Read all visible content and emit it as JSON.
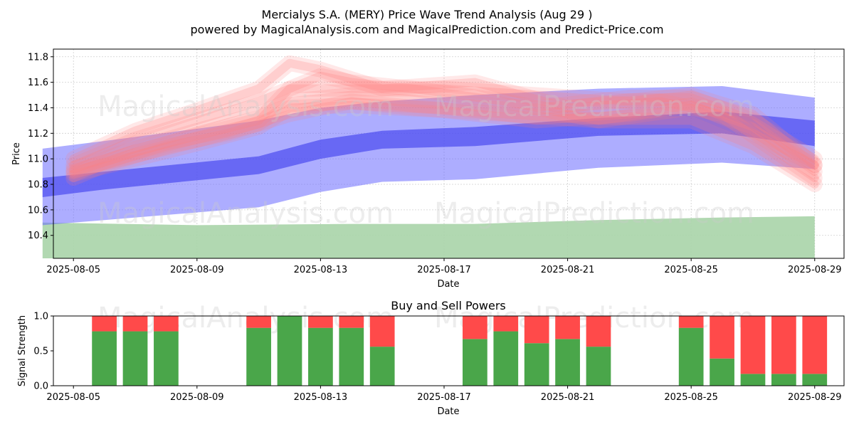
{
  "title_line1": "Mercialys S.A. (MERY) Price Wave Trend Analysis (Aug 29 )",
  "title_line2": "powered by MagicalAnalysis.com and MagicalPrediction.com and Predict-Price.com",
  "watermarks": [
    "MagicalAnalysis.com",
    "MagicalPrediction.com"
  ],
  "colors": {
    "buy": "#4aa64a",
    "sell": "#ff4a4a",
    "trend": "#6a6aff",
    "volume": "#a8d4a8",
    "wave": "#ff7f7f"
  },
  "chart_data": [
    {
      "type": "area",
      "title": "",
      "xlabel": "Date",
      "ylabel": "Price",
      "xlim": [
        "2025-08-04",
        "2025-08-30"
      ],
      "ylim": [
        10.22,
        11.86
      ],
      "x_ticks": [
        "2025-08-05",
        "2025-08-09",
        "2025-08-13",
        "2025-08-17",
        "2025-08-21",
        "2025-08-25",
        "2025-08-29"
      ],
      "y_ticks": [
        10.4,
        10.6,
        10.8,
        11.0,
        11.2,
        11.4,
        11.6,
        11.8
      ],
      "grid": true,
      "trend_bands": {
        "x": [
          "2025-08-04",
          "2025-08-06",
          "2025-08-11",
          "2025-08-13",
          "2025-08-15",
          "2025-08-18",
          "2025-08-22",
          "2025-08-26",
          "2025-08-29"
        ],
        "wide_upper": [
          11.08,
          11.14,
          11.3,
          11.4,
          11.45,
          11.5,
          11.55,
          11.57,
          11.48
        ],
        "wide_lower": [
          10.48,
          10.52,
          10.62,
          10.74,
          10.82,
          10.84,
          10.93,
          10.97,
          10.92
        ],
        "mid_upper": [
          10.85,
          10.9,
          11.02,
          11.15,
          11.22,
          11.25,
          11.32,
          11.37,
          11.3
        ],
        "mid_lower": [
          10.7,
          10.76,
          10.88,
          11.0,
          11.08,
          11.1,
          11.18,
          11.2,
          11.1
        ]
      },
      "volume_band": {
        "x": [
          "2025-08-04",
          "2025-08-09",
          "2025-08-14",
          "2025-08-18",
          "2025-08-22",
          "2025-08-26",
          "2025-08-29"
        ],
        "upper": [
          10.5,
          10.48,
          10.49,
          10.49,
          10.52,
          10.54,
          10.55
        ]
      },
      "price_waves": [
        {
          "x": [
            "2025-08-05",
            "2025-08-07",
            "2025-08-09",
            "2025-08-11",
            "2025-08-12",
            "2025-08-14",
            "2025-08-17",
            "2025-08-20",
            "2025-08-23",
            "2025-08-25",
            "2025-08-27",
            "2025-08-29"
          ],
          "y": [
            10.9,
            11.05,
            11.18,
            11.3,
            11.55,
            11.55,
            11.55,
            11.5,
            11.45,
            11.5,
            11.35,
            10.95
          ]
        },
        {
          "x": [
            "2025-08-05",
            "2025-08-07",
            "2025-08-09",
            "2025-08-11",
            "2025-08-12",
            "2025-08-13",
            "2025-08-15",
            "2025-08-18",
            "2025-08-21",
            "2025-08-24",
            "2025-08-26",
            "2025-08-29"
          ],
          "y": [
            11.0,
            11.22,
            11.38,
            11.55,
            11.75,
            11.7,
            11.55,
            11.6,
            11.4,
            11.45,
            11.35,
            10.85
          ]
        },
        {
          "x": [
            "2025-08-05",
            "2025-08-06",
            "2025-08-08",
            "2025-08-10",
            "2025-08-12",
            "2025-08-14",
            "2025-08-16",
            "2025-08-19",
            "2025-08-22",
            "2025-08-25",
            "2025-08-27",
            "2025-08-29"
          ],
          "y": [
            10.85,
            10.95,
            11.1,
            11.2,
            11.35,
            11.45,
            11.4,
            11.35,
            11.3,
            11.4,
            11.2,
            10.95
          ]
        },
        {
          "x": [
            "2025-08-05",
            "2025-08-07",
            "2025-08-09",
            "2025-08-11",
            "2025-08-13",
            "2025-08-14",
            "2025-08-16",
            "2025-08-19",
            "2025-08-22",
            "2025-08-25",
            "2025-08-27",
            "2025-08-29"
          ],
          "y": [
            10.95,
            11.15,
            11.3,
            11.45,
            11.65,
            11.6,
            11.55,
            11.45,
            11.3,
            11.3,
            11.1,
            10.8
          ]
        },
        {
          "x": [
            "2025-08-05",
            "2025-08-07",
            "2025-08-09",
            "2025-08-11",
            "2025-08-12",
            "2025-08-14",
            "2025-08-17",
            "2025-08-20",
            "2025-08-23",
            "2025-08-25",
            "2025-08-27",
            "2025-08-29"
          ],
          "y": [
            10.92,
            11.08,
            11.22,
            11.35,
            11.45,
            11.5,
            11.45,
            11.4,
            11.48,
            11.48,
            11.3,
            11.0
          ]
        },
        {
          "x": [
            "2025-08-05",
            "2025-08-07",
            "2025-08-09",
            "2025-08-11",
            "2025-08-12",
            "2025-08-14",
            "2025-08-17",
            "2025-08-20",
            "2025-08-23",
            "2025-08-25",
            "2025-08-27",
            "2025-08-29"
          ],
          "y": [
            10.88,
            11.0,
            11.12,
            11.25,
            11.4,
            11.42,
            11.38,
            11.3,
            11.35,
            11.42,
            11.25,
            10.9
          ]
        }
      ]
    },
    {
      "type": "bar",
      "title": "Buy and Sell Powers",
      "xlabel": "Date",
      "ylabel": "Signal Strength",
      "xlim": [
        "2025-08-04",
        "2025-08-30"
      ],
      "ylim": [
        0,
        1.0
      ],
      "x_ticks": [
        "2025-08-05",
        "2025-08-09",
        "2025-08-13",
        "2025-08-17",
        "2025-08-21",
        "2025-08-25",
        "2025-08-29"
      ],
      "y_ticks": [
        0.0,
        0.5,
        1.0
      ],
      "y_tick_labels": [
        "0.0",
        "0.5",
        "1.0"
      ],
      "dates": [
        "2025-08-06",
        "2025-08-07",
        "2025-08-08",
        "2025-08-11",
        "2025-08-12",
        "2025-08-13",
        "2025-08-14",
        "2025-08-15",
        "2025-08-18",
        "2025-08-19",
        "2025-08-20",
        "2025-08-21",
        "2025-08-22",
        "2025-08-25",
        "2025-08-26",
        "2025-08-27",
        "2025-08-28",
        "2025-08-29"
      ],
      "series": [
        {
          "name": "Buy",
          "values": [
            0.78,
            0.78,
            0.78,
            0.83,
            1.0,
            0.83,
            0.83,
            0.56,
            0.67,
            0.78,
            0.61,
            0.67,
            0.56,
            0.83,
            0.39,
            0.17,
            0.17,
            0.17
          ]
        },
        {
          "name": "Sell",
          "values": [
            0.22,
            0.22,
            0.22,
            0.17,
            0.0,
            0.17,
            0.17,
            0.44,
            0.33,
            0.22,
            0.39,
            0.33,
            0.44,
            0.17,
            0.61,
            0.83,
            0.83,
            0.83
          ]
        }
      ]
    }
  ]
}
